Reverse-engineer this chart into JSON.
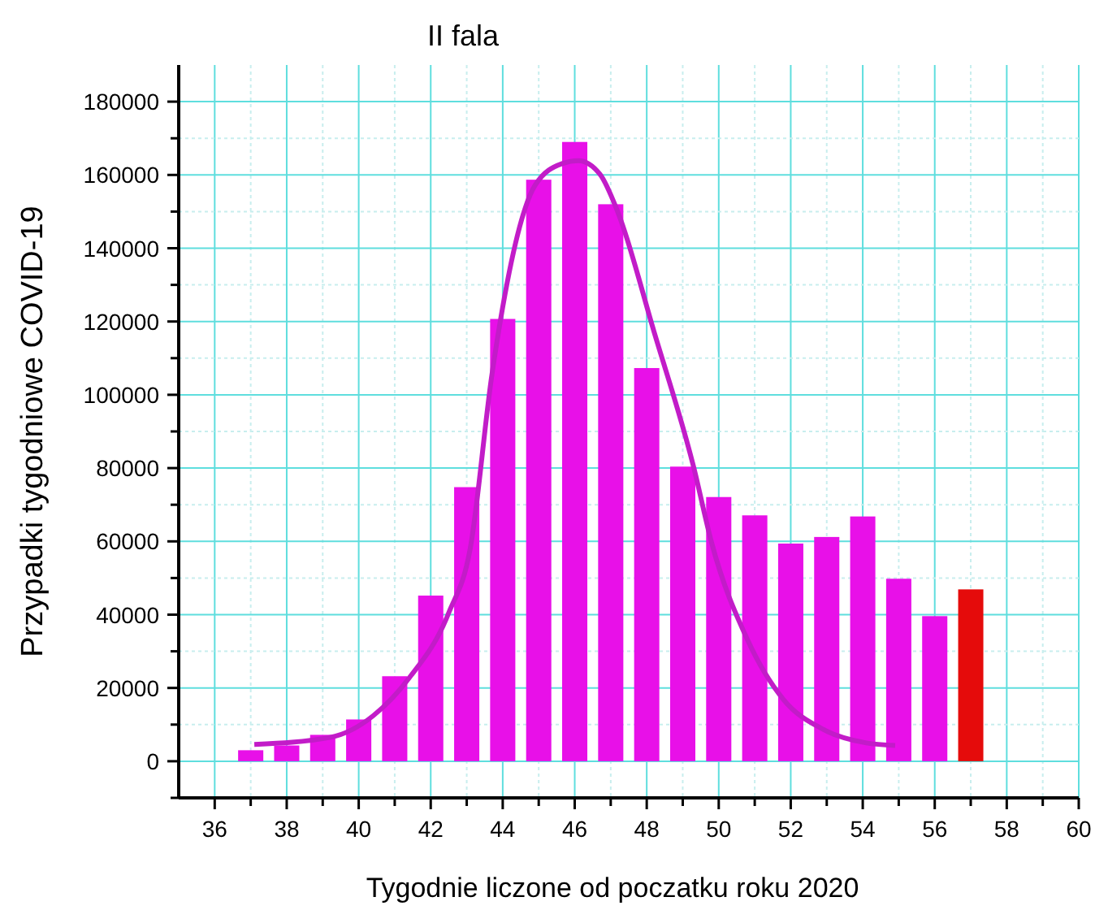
{
  "chart_data": {
    "type": "bar",
    "title": "II fala",
    "xlabel": "Tygodnie liczone od poczatku roku 2020",
    "ylabel": "Przypadki tygodniowe  COVID-19",
    "xlim": [
      35,
      60
    ],
    "xticks": [
      36,
      {
        "value": 37,
        "label": null
      },
      38,
      {
        "value": 39,
        "label": null
      },
      40,
      {
        "value": 41,
        "label": null
      },
      42,
      {
        "value": 43,
        "label": null
      },
      44,
      {
        "value": 45,
        "label": null
      },
      46,
      {
        "value": 47,
        "label": null
      },
      48,
      {
        "value": 49,
        "label": null
      },
      50,
      {
        "value": 51,
        "label": null
      },
      52,
      {
        "value": 53,
        "label": null
      },
      54,
      {
        "value": 55,
        "label": null
      },
      56,
      {
        "value": 57,
        "label": null
      },
      58,
      {
        "value": 59,
        "label": null
      },
      60
    ],
    "ylim": [
      -10000,
      190000
    ],
    "yticks": [
      {
        "value": -10000,
        "label": null
      },
      0,
      {
        "value": 10000,
        "label": null
      },
      20000,
      {
        "value": 30000,
        "label": null
      },
      40000,
      {
        "value": 50000,
        "label": null
      },
      60000,
      {
        "value": 70000,
        "label": null
      },
      80000,
      {
        "value": 90000,
        "label": null
      },
      100000,
      {
        "value": 110000,
        "label": null
      },
      120000,
      {
        "value": 130000,
        "label": null
      },
      140000,
      {
        "value": 150000,
        "label": null
      },
      160000,
      {
        "value": 170000,
        "label": null
      },
      180000
    ],
    "grid": true,
    "series": [
      {
        "color": "#e810e8",
        "x": [
          37,
          38,
          39,
          40,
          41,
          42,
          43,
          44,
          45,
          46,
          47,
          48,
          49,
          50,
          51,
          52,
          53,
          54,
          55,
          56
        ],
        "values": [
          3000,
          4300,
          7200,
          11400,
          23200,
          45200,
          74800,
          120700,
          158700,
          169000,
          152000,
          107300,
          80400,
          72100,
          67100,
          59400,
          61200,
          66800,
          49800,
          39600
        ]
      },
      {
        "color": "#e50b0b",
        "x": [
          57
        ],
        "values": [
          46900
        ]
      },
      {
        "type": "line",
        "color": "#c21cc8",
        "x": [
          37.1,
          39.2,
          40.4,
          41.4,
          42.5,
          43.1,
          43.7,
          44.9,
          45.65,
          46.1,
          46.7,
          47.2,
          48.2,
          49.3,
          49.8,
          50.8,
          51.8,
          52.9,
          54.1,
          54.9
        ],
        "values": [
          4600,
          6500,
          12400,
          22700,
          40500,
          58200,
          105500,
          157200,
          163100,
          163900,
          160200,
          149800,
          117300,
          80400,
          59700,
          33100,
          16800,
          8700,
          5000,
          4300
        ]
      }
    ]
  }
}
